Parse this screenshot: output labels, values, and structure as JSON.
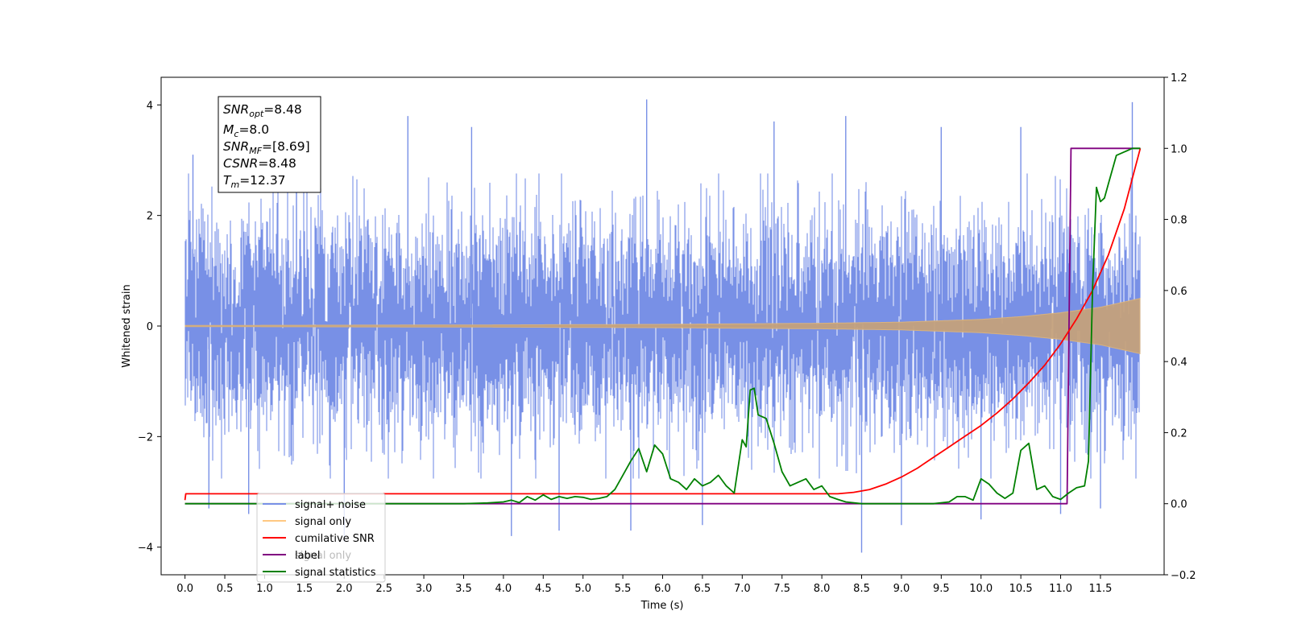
{
  "chart_data": {
    "type": "line",
    "xlabel": "Time (s)",
    "ylabel": "Whitened strain",
    "x_ticks": [
      "0.0",
      "0.5",
      "1.0",
      "1.5",
      "2.0",
      "2.5",
      "3.0",
      "3.5",
      "4.0",
      "4.5",
      "5.0",
      "5.5",
      "6.0",
      "6.5",
      "7.0",
      "7.5",
      "8.0",
      "8.5",
      "9.0",
      "9.5",
      "10.0",
      "10.5",
      "11.0",
      "11.5"
    ],
    "xlim": [
      -0.3,
      12.3
    ],
    "ylim_left": [
      -4.5,
      4.5
    ],
    "yticks_left": [
      -4,
      -2,
      0,
      2,
      4
    ],
    "ylim_right": [
      -0.2,
      1.2
    ],
    "yticks_right": [
      "−0.2",
      "0.0",
      "0.2",
      "0.4",
      "0.6",
      "0.8",
      "1.0",
      "1.2"
    ],
    "info_box": [
      {
        "base": "SNR",
        "sub": "opt",
        "value": "=8.48"
      },
      {
        "base": "M",
        "sub": "c",
        "value": "=8.0"
      },
      {
        "base": "SNR",
        "sub": "MF",
        "value": "=[8.69]"
      },
      {
        "base": "CSNR",
        "sub": "",
        "value": "=8.48"
      },
      {
        "base": "T",
        "sub": "m",
        "value": "=12.37"
      }
    ],
    "legend_position": "bottom-left",
    "legend": [
      {
        "label": "signal+ noise",
        "color": "#7890e6"
      },
      {
        "label": "signal only",
        "color": "#ffc882"
      },
      {
        "label": "cumilative SNR",
        "color": "#ff0000"
      },
      {
        "label": "label",
        "color": "#800080"
      },
      {
        "label": "signal statistics",
        "color": "#008000"
      }
    ],
    "legend_hidden_label": "signal only",
    "series": [
      {
        "name": "signal+ noise",
        "axis": "left",
        "color": "#7890e6",
        "x_range": [
          0.0,
          12.0
        ],
        "amplitude_envelope": [
          2.4,
          4.1
        ],
        "spike_samples": [
          {
            "x": 0.1,
            "y": 3.1
          },
          {
            "x": 0.3,
            "y": -3.3
          },
          {
            "x": 0.8,
            "y": -3.4
          },
          {
            "x": 1.4,
            "y": 3.7
          },
          {
            "x": 2.0,
            "y": -3.9
          },
          {
            "x": 2.8,
            "y": 3.8
          },
          {
            "x": 3.6,
            "y": 3.6
          },
          {
            "x": 4.1,
            "y": -3.8
          },
          {
            "x": 4.7,
            "y": -3.7
          },
          {
            "x": 5.6,
            "y": -3.7
          },
          {
            "x": 5.8,
            "y": 4.1
          },
          {
            "x": 6.5,
            "y": -3.6
          },
          {
            "x": 7.4,
            "y": 3.7
          },
          {
            "x": 8.3,
            "y": 3.8
          },
          {
            "x": 8.5,
            "y": -4.1
          },
          {
            "x": 9.0,
            "y": -3.6
          },
          {
            "x": 9.5,
            "y": 3.6
          },
          {
            "x": 10.0,
            "y": -3.5
          },
          {
            "x": 10.5,
            "y": 3.6
          },
          {
            "x": 11.0,
            "y": -3.4
          },
          {
            "x": 11.5,
            "y": -3.3
          },
          {
            "x": 11.9,
            "y": 4.05
          }
        ]
      },
      {
        "name": "signal only",
        "axis": "left",
        "color": "#ffc882",
        "x": [
          0.0,
          2.0,
          4.0,
          6.0,
          8.0,
          9.0,
          10.0,
          10.5,
          11.0,
          11.5,
          12.0
        ],
        "amplitude": [
          0.01,
          0.015,
          0.02,
          0.03,
          0.05,
          0.07,
          0.12,
          0.17,
          0.24,
          0.34,
          0.5
        ]
      },
      {
        "name": "cumilative SNR",
        "axis": "right",
        "color": "#ff0000",
        "x": [
          0.0,
          0.01,
          0.02,
          8.0,
          8.2,
          8.4,
          8.6,
          8.8,
          9.0,
          9.2,
          9.4,
          9.6,
          9.8,
          10.0,
          10.2,
          10.4,
          10.6,
          10.8,
          11.0,
          11.2,
          11.4,
          11.6,
          11.8,
          12.0
        ],
        "y": [
          0.01,
          0.028,
          0.028,
          0.028,
          0.028,
          0.032,
          0.04,
          0.055,
          0.075,
          0.1,
          0.13,
          0.16,
          0.19,
          0.22,
          0.255,
          0.295,
          0.34,
          0.39,
          0.45,
          0.52,
          0.6,
          0.7,
          0.83,
          1.0
        ]
      },
      {
        "name": "label",
        "axis": "right",
        "color": "#800080",
        "x": [
          0.0,
          11.08,
          11.13,
          12.0
        ],
        "y": [
          0.0,
          0.0,
          1.0,
          1.0
        ]
      },
      {
        "name": "signal statistics",
        "axis": "right",
        "color": "#008000",
        "x": [
          0.0,
          3.5,
          3.8,
          4.0,
          4.1,
          4.2,
          4.3,
          4.4,
          4.5,
          4.6,
          4.7,
          4.8,
          4.9,
          5.0,
          5.1,
          5.2,
          5.3,
          5.4,
          5.5,
          5.6,
          5.7,
          5.8,
          5.9,
          6.0,
          6.1,
          6.2,
          6.3,
          6.4,
          6.5,
          6.6,
          6.7,
          6.8,
          6.9,
          7.0,
          7.05,
          7.1,
          7.15,
          7.2,
          7.3,
          7.4,
          7.5,
          7.6,
          7.7,
          7.8,
          7.9,
          8.0,
          8.1,
          8.2,
          8.3,
          8.5,
          9.0,
          9.4,
          9.6,
          9.7,
          9.8,
          9.9,
          10.0,
          10.1,
          10.2,
          10.3,
          10.4,
          10.5,
          10.6,
          10.7,
          10.8,
          10.9,
          11.0,
          11.1,
          11.2,
          11.3,
          11.35,
          11.4,
          11.45,
          11.5,
          11.55,
          11.6,
          11.7,
          11.8,
          11.9,
          12.0
        ],
        "y": [
          0.0,
          0.0,
          0.002,
          0.005,
          0.01,
          0.003,
          0.02,
          0.01,
          0.025,
          0.012,
          0.02,
          0.015,
          0.02,
          0.018,
          0.012,
          0.015,
          0.02,
          0.04,
          0.08,
          0.12,
          0.155,
          0.09,
          0.165,
          0.14,
          0.07,
          0.06,
          0.04,
          0.07,
          0.05,
          0.06,
          0.08,
          0.05,
          0.03,
          0.18,
          0.16,
          0.32,
          0.325,
          0.25,
          0.24,
          0.17,
          0.09,
          0.05,
          0.06,
          0.07,
          0.04,
          0.05,
          0.02,
          0.012,
          0.005,
          0.0,
          0.0,
          0.0,
          0.005,
          0.02,
          0.02,
          0.01,
          0.07,
          0.055,
          0.03,
          0.015,
          0.03,
          0.15,
          0.17,
          0.04,
          0.05,
          0.02,
          0.012,
          0.03,
          0.045,
          0.05,
          0.12,
          0.6,
          0.89,
          0.85,
          0.86,
          0.9,
          0.98,
          0.99,
          1.0,
          1.0
        ]
      }
    ]
  }
}
